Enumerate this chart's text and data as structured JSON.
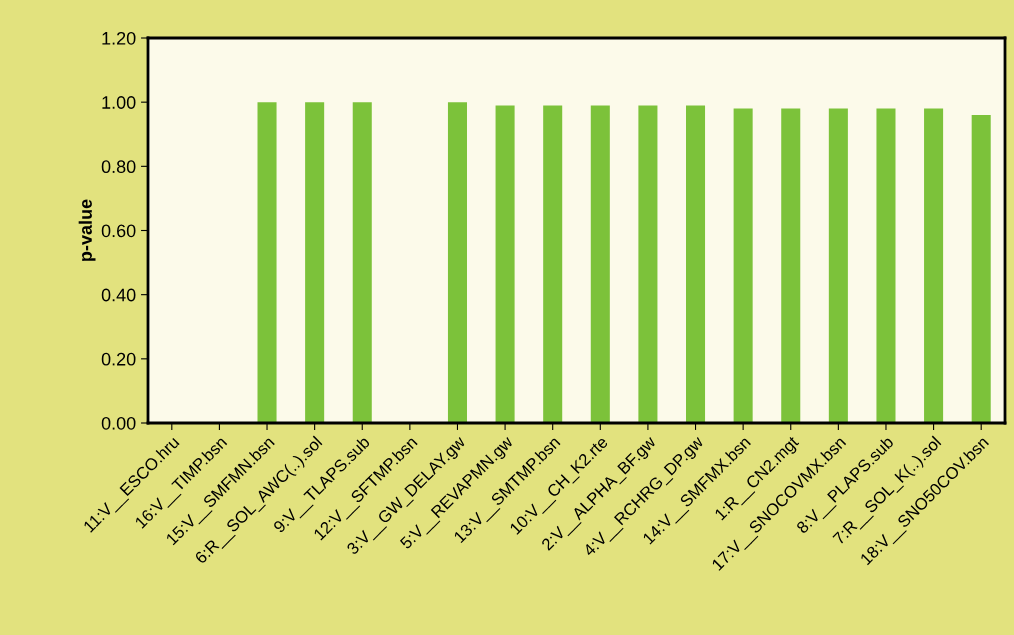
{
  "chart_data": {
    "type": "bar",
    "ylabel": "p-value",
    "categories": [
      "11:V__ESCO.hru",
      "16:V__TIMP.bsn",
      "15:V__SMFMN.bsn",
      "6:R__SOL_AWC(..).sol",
      "9:V__TLAPS.sub",
      "12:V__SFTMP.bsn",
      "3:V__GW_DELAY.gw",
      "5:V__REVAPMN.gw",
      "13:V__SMTMP.bsn",
      "10:V__CH_K2.rte",
      "2:V__ALPHA_BF.gw",
      "4:V__RCHRG_DP.gw",
      "14:V__SMFMX.bsn",
      "1:R__CN2.mgt",
      "17:V__SNOCOVMX.bsn",
      "8:V__PLAPS.sub",
      "7:R__SOL_K(..).sol",
      "18:V__SNO50COV.bsn"
    ],
    "values": [
      0,
      0,
      1.0,
      1.0,
      1.0,
      0,
      1.0,
      0.99,
      0.99,
      0.99,
      0.99,
      0.99,
      0.98,
      0.98,
      0.98,
      0.98,
      0.98,
      0.96
    ],
    "color": "#7cc23a",
    "ylim": [
      0,
      1.2
    ],
    "yticks": [
      {
        "value": 0,
        "label": "0.00"
      },
      {
        "value": 0.2,
        "label": "0.20"
      },
      {
        "value": 0.4,
        "label": "0.40"
      },
      {
        "value": 0.6,
        "label": "0.60"
      },
      {
        "value": 0.8,
        "label": "0.80"
      },
      {
        "value": 1.0,
        "label": "1.00"
      },
      {
        "value": 1.2,
        "label": "1.20"
      }
    ],
    "grid": false
  }
}
